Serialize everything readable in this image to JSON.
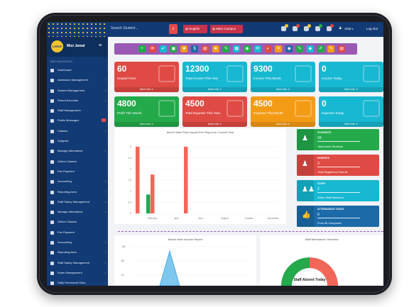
{
  "topbar": {
    "search_placeholder": "Search Student...",
    "language": "English",
    "campus": "Main Campus",
    "user": "Ahat L",
    "logout": "Log Out"
  },
  "sidebar": {
    "logo_text": "LOGO",
    "brand": "Mist Jamal",
    "section_label": "MAIN NAVIGATION",
    "items": [
      {
        "label": "Dashboard",
        "chevron": false
      },
      {
        "label": "Admission Management",
        "chevron": true
      },
      {
        "label": "Student Management",
        "chevron": true
      },
      {
        "label": "Parent Accounts",
        "chevron": true
      },
      {
        "label": "Staff Management",
        "chevron": false
      },
      {
        "label": "Public Messages",
        "chevron": false,
        "badge": true
      },
      {
        "label": "Classes",
        "chevron": true
      },
      {
        "label": "Subjects",
        "chevron": false
      },
      {
        "label": "Manage Attendance",
        "chevron": true
      },
      {
        "label": "Online Classes",
        "chevron": false
      },
      {
        "label": "Fee Payment",
        "chevron": false
      },
      {
        "label": "Accounting",
        "chevron": true
      },
      {
        "label": "Reporting Area",
        "chevron": true
      },
      {
        "label": "Staff Salary Management",
        "chevron": true
      },
      {
        "label": "Manage Attendance",
        "chevron": true
      },
      {
        "label": "Online Classes",
        "chevron": false
      },
      {
        "label": "Fee Payment",
        "chevron": false
      },
      {
        "label": "Accounting",
        "chevron": true
      },
      {
        "label": "Reporting Area",
        "chevron": true
      },
      {
        "label": "Staff Salary Management",
        "chevron": true
      },
      {
        "label": "Exam Management",
        "chevron": true
      },
      {
        "label": "Daily Homework Diary",
        "chevron": true
      }
    ]
  },
  "cards": [
    {
      "value": "60",
      "label": "Unpaid Fees",
      "more": "More info",
      "color": "#e04a44"
    },
    {
      "value": "12300",
      "label": "Total Income This Year",
      "more": "More info",
      "color": "#17b8d1"
    },
    {
      "value": "9300",
      "label": "Income This Month",
      "more": "More info",
      "color": "#17b8d1"
    },
    {
      "value": "0",
      "label": "Income Today",
      "more": "More info",
      "color": "#17b8d1"
    },
    {
      "value": "4800",
      "label": "Profit This Month",
      "more": "More info",
      "color": "#24a94b"
    },
    {
      "value": "4500",
      "label": "Total Expense This Year",
      "more": "More info",
      "color": "#e04a44"
    },
    {
      "value": "4500",
      "label": "Expense This Month",
      "more": "More info",
      "color": "#f49b16"
    },
    {
      "value": "0",
      "label": "Expense Today",
      "more": "More info",
      "color": "#17b8d1"
    }
  ],
  "stats": [
    {
      "name": "STUDENTS",
      "value": "34",
      "desc": "Total Active Students",
      "color": "#24a94b"
    },
    {
      "name": "PARENTS",
      "value": "3",
      "desc": "Total Registered Parents",
      "color": "#e04a44"
    },
    {
      "name": "STAFF",
      "value": "2",
      "desc": "Active Staff Members",
      "color": "#17b8d1"
    },
    {
      "name": "ATTENDANCE TODAY",
      "value": "0",
      "desc": "From All Campuses",
      "color": "#1c6aa8"
    }
  ],
  "chart_data": [
    {
      "type": "bar",
      "title": "Month Wise Paid Unpaid Fee Report for Current Year",
      "categories": [
        "January",
        "February",
        "March",
        "April",
        "May",
        "June",
        "July",
        "August",
        "September",
        "October",
        "November",
        "December"
      ],
      "tick_labels": [
        "February",
        "April",
        "June",
        "August",
        "October",
        "December"
      ],
      "ylim": [
        0,
        3
      ],
      "yticks": [
        "0",
        "0.5",
        "1",
        "1.5",
        "2",
        "2.5",
        "3"
      ],
      "series": [
        {
          "color": "#f2665a",
          "values": [
            3,
            1.75,
            0,
            0,
            3,
            0,
            0,
            0,
            0,
            0,
            0,
            0
          ]
        },
        {
          "color": "#25a550",
          "values": [
            0,
            0.85,
            0,
            0,
            0,
            0,
            0,
            0,
            0,
            0,
            0,
            0
          ]
        }
      ]
    }
  ],
  "income_report": {
    "title": "Month Wise Income Report",
    "yticks": [
      "10k",
      "8k",
      "6k"
    ]
  },
  "attendance": {
    "title": "Staff Attendance Overview",
    "center_label": "Staff Absent Today",
    "green": 50,
    "red": 50
  }
}
